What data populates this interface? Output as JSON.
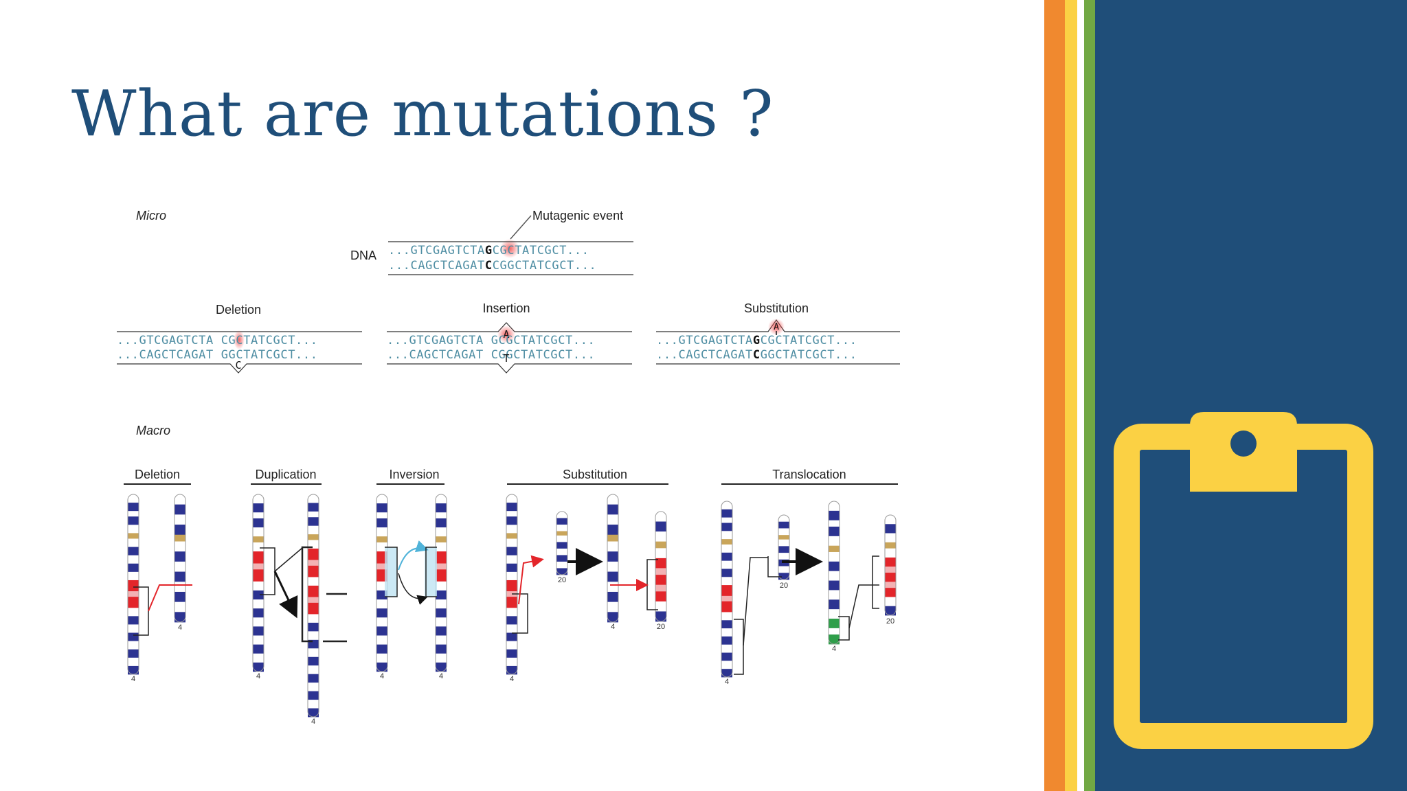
{
  "slide": {
    "title": "What are mutations ?"
  },
  "theme": {
    "title_color": "#1f4e79",
    "panel_color": "#1f4e79",
    "stripe_orange": "#f0892f",
    "stripe_yellow": "#fbd144",
    "stripe_green": "#71a844",
    "icon_color": "#fbd144",
    "dna_color": "#4f8ea3",
    "band_blue": "#2c3391",
    "band_red": "#e3252a",
    "band_green": "#2f9e4a"
  },
  "icon": {
    "name": "clipboard-icon"
  },
  "figure": {
    "micro": {
      "label": "Micro",
      "event_label": "Mutagenic event",
      "dna_label": "DNA",
      "dna_top": {
        "left": "...GTCGAGTCTA",
        "mid": "G",
        "right": "CGCTATCGCT..."
      },
      "dna_bottom": {
        "left": "...CAGCTCAGAT",
        "mid": "C",
        "right": "CGGCTATCGCT..."
      },
      "deletion": {
        "title": "Deletion",
        "top": "...GTCGAGTCTA CGCTATCGCT...",
        "bottom": "...CAGCTCAGAT GGCTATCGCT...",
        "base": "C"
      },
      "insertion": {
        "title": "Insertion",
        "top": "...GTCGAGTCTA GCGCTATCGCT...",
        "bottom": "...CAGCTCAGAT CGGCTATCGCT...",
        "base_top": "A",
        "base_bottom": "T"
      },
      "substitution": {
        "title": "Substitution",
        "top": {
          "left": "...GTCGAGTCTA",
          "mid": "G",
          "right": "CGCTATCGCT..."
        },
        "bottom": {
          "left": "...CAGCTCAGAT",
          "mid": "C",
          "right": "GGCTATCGCT..."
        },
        "old_base": "A"
      }
    },
    "macro": {
      "label": "Macro",
      "deletion": {
        "title": "Deletion",
        "chr_labels": [
          "4",
          "4"
        ]
      },
      "duplication": {
        "title": "Duplication",
        "chr_labels": [
          "4",
          "4"
        ]
      },
      "inversion": {
        "title": "Inversion",
        "chr_labels": [
          "4",
          "4"
        ]
      },
      "substitution": {
        "title": "Substitution",
        "chr_labels": [
          "4",
          "20",
          "4",
          "20"
        ]
      },
      "translocation": {
        "title": "Translocation",
        "chr_labels": [
          "4",
          "20",
          "4",
          "20"
        ]
      }
    }
  }
}
